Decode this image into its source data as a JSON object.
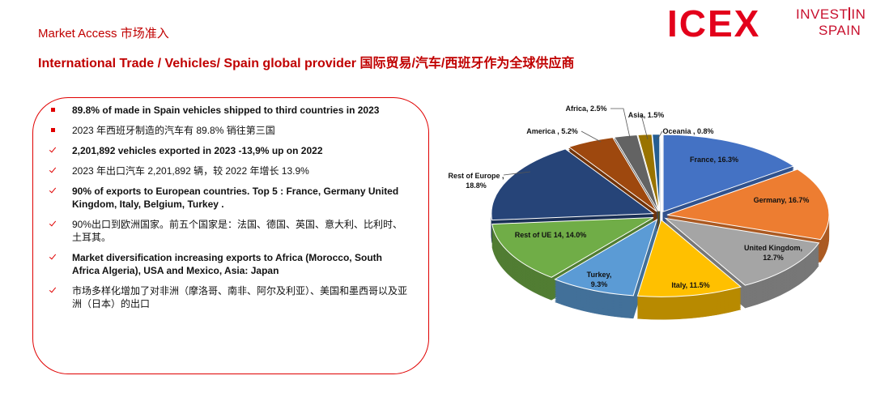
{
  "header": {
    "section": "Market Access 市场准入",
    "title": "International Trade / Vehicles/ Spain global provider 国际贸易/汽车/西班牙作为全球供应商"
  },
  "logos": {
    "icex": "ICEX",
    "invest": "INVEST",
    "in": "IN",
    "spain": "SPAIN"
  },
  "bullets": [
    {
      "marker": "square",
      "bold": true,
      "text": "89.8% of  made in Spain vehicles shipped to third countries in 2023"
    },
    {
      "marker": "square",
      "bold": false,
      "text": "2023 年西班牙制造的汽车有 89.8% 销往第三国"
    },
    {
      "marker": "check",
      "bold": true,
      "text": "2,201,892  vehicles exported in 2023 -13,9% up on 2022"
    },
    {
      "marker": "check",
      "bold": false,
      "text": "2023 年出口汽车 2,201,892 辆，较 2022 年增长 13.9%"
    },
    {
      "marker": "check",
      "bold": true,
      "text": "90% of exports to European countries. Top 5 : France, Germany United Kingdom, Italy, Belgium, Turkey ."
    },
    {
      "marker": "check",
      "bold": false,
      "text": "90%出口到欧洲国家。前五个国家是：法国、德国、英国、意大利、比利时、土耳其。"
    },
    {
      "marker": "check",
      "bold": true,
      "text": "Market diversification increasing exports to  Africa (Morocco, South Africa Algeria), USA and Mexico, Asia: Japan"
    },
    {
      "marker": "check",
      "bold": false,
      "text": "市场多样化增加了对非洲（摩洛哥、南非、阿尔及利亚）、美国和墨西哥以及亚洲（日本）的出口"
    }
  ],
  "chart_data": {
    "type": "pie",
    "values": [
      16.3,
      16.7,
      12.7,
      11.5,
      9.3,
      14.0,
      18.8,
      5.2,
      2.5,
      1.5,
      0.8
    ],
    "value_labels": [
      "France, 16.3%",
      "Germany, 16.7%",
      "United Kingdom, 12.7%",
      "Italy, 11.5%",
      "Turkey, 9.3%",
      "Rest of UE 14, 14.0%",
      "Rest of Europe , 18.8%",
      "America , 5.2%",
      "Africa, 2.5%",
      "Asia, 1.5%",
      "Oceania , 0.8%"
    ],
    "colors": [
      "#4472c4",
      "#ed7d31",
      "#a5a5a5",
      "#ffc000",
      "#5b9bd5",
      "#70ad47",
      "#264478",
      "#9e480e",
      "#636363",
      "#997300",
      "#255e91"
    ]
  }
}
